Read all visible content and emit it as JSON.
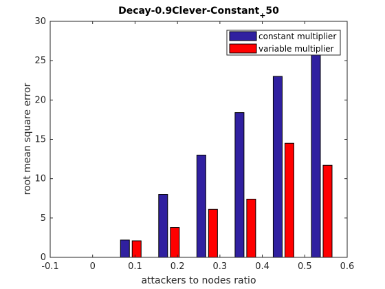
{
  "chart_data": {
    "type": "bar",
    "title_main": "Decay-0.9Clever-Constant",
    "title_sub": "+",
    "title_tail": "50",
    "xlabel": "attackers to nodes ratio",
    "ylabel": "root mean square error",
    "xlim": [
      -0.1,
      0.6
    ],
    "ylim": [
      0,
      30
    ],
    "xticks": [
      -0.1,
      0,
      0.1,
      0.2,
      0.3,
      0.4,
      0.5,
      0.6
    ],
    "xtick_labels": [
      "-0.1",
      "0",
      "0.1",
      "0.2",
      "0.3",
      "0.4",
      "0.5",
      "0.6"
    ],
    "yticks": [
      0,
      5,
      10,
      15,
      20,
      25,
      30
    ],
    "ytick_labels": [
      "0",
      "5",
      "10",
      "15",
      "20",
      "25",
      "30"
    ],
    "x": [
      0.09,
      0.18,
      0.27,
      0.36,
      0.45,
      0.54
    ],
    "series": [
      {
        "name": "constant multiplier",
        "color": "#3020a0",
        "values": [
          2.2,
          8.0,
          13.0,
          18.4,
          23.0,
          26.0
        ]
      },
      {
        "name": "variable multiplier",
        "color": "#ff0000",
        "values": [
          2.1,
          3.8,
          6.1,
          7.4,
          14.5,
          11.7
        ]
      }
    ],
    "legend_placement": "top-right",
    "grid": false
  }
}
